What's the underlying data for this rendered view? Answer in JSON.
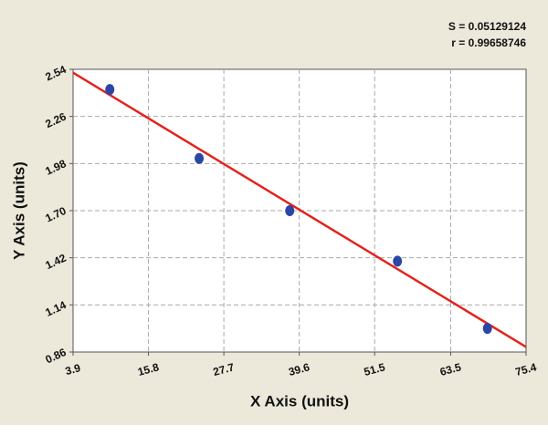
{
  "chart_data": {
    "type": "scatter",
    "annotations": [
      "S = 0.05129124",
      "r = 0.99658746"
    ],
    "x_label": "X Axis (units)",
    "y_label": "Y Axis (units)",
    "x": [
      9.7,
      23.8,
      38.1,
      55.1,
      69.3
    ],
    "values": [
      2.42,
      2.01,
      1.7,
      1.4,
      1.0
    ],
    "color": "#2a47a6",
    "fit_line": {
      "x": [
        3.9,
        75.4
      ],
      "y": [
        2.52,
        0.89
      ],
      "color": "#e3231c"
    },
    "xlim": [
      3.9,
      75.4
    ],
    "xticks": [
      3.9,
      15.8,
      27.7,
      39.6,
      51.5,
      63.5,
      75.4
    ],
    "ylim": [
      0.86,
      2.54
    ],
    "yticks": [
      0.86,
      1.14,
      1.42,
      {
        "value": 1.7,
        "label": "1.70"
      },
      1.98,
      2.26,
      2.54
    ],
    "grid": true
  }
}
